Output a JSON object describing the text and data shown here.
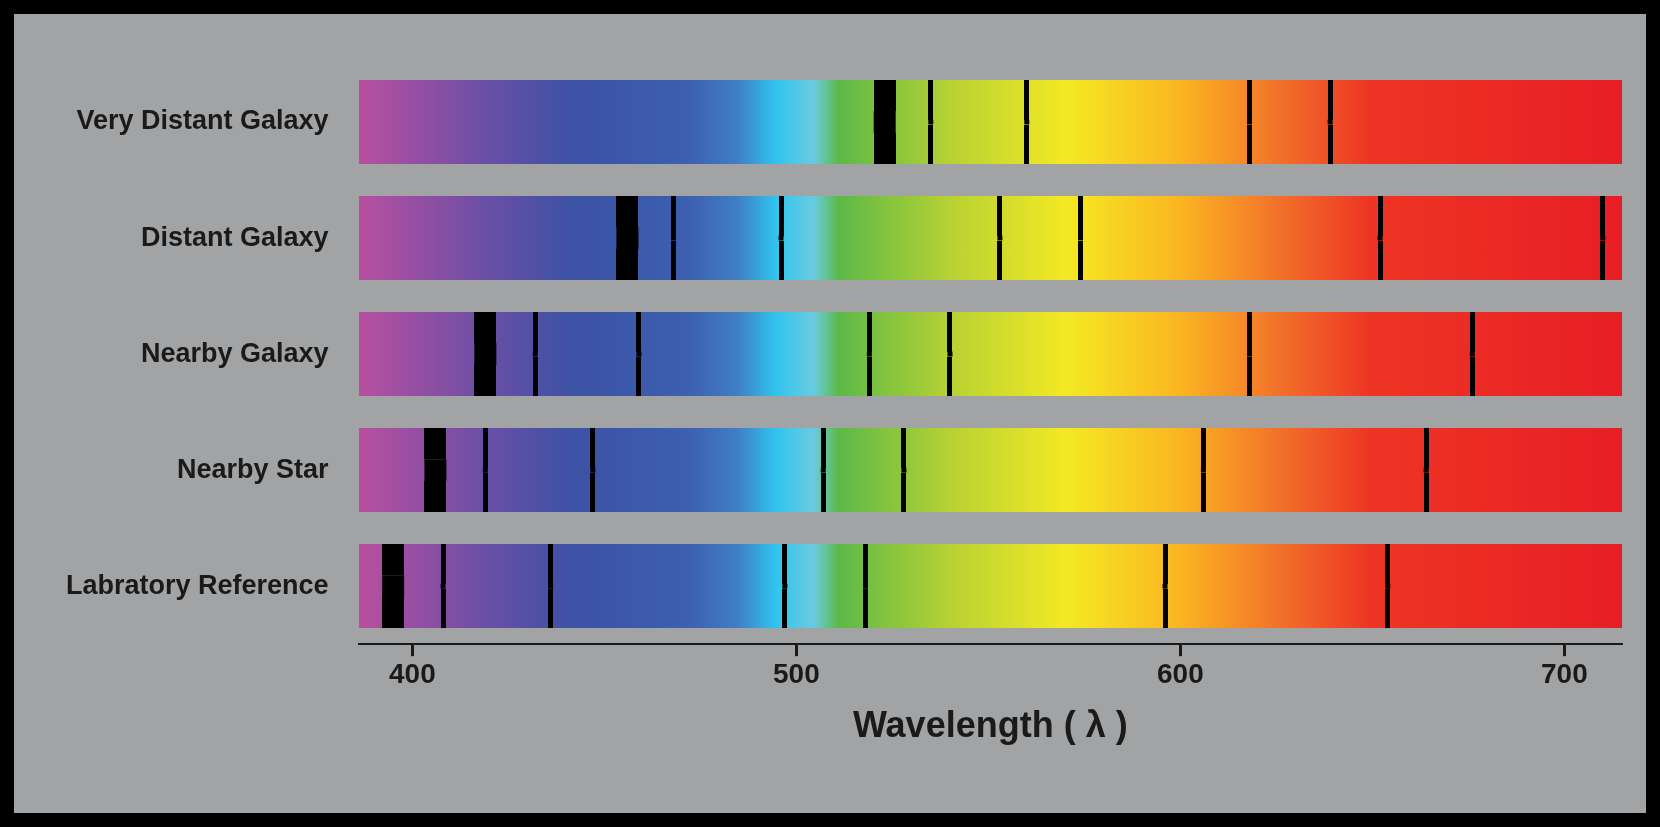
{
  "chart_data": {
    "type": "scatter",
    "orientation": "horizontal",
    "xlabel": "Wavelength ( λ )",
    "categories": [
      "Very Distant Galaxy",
      "Distant Galaxy",
      "Nearby Galaxy",
      "Nearby Star",
      "Labratory Reference"
    ],
    "xlim": [
      386,
      715
    ],
    "xticks": [
      400,
      500,
      600,
      700
    ],
    "series": [
      {
        "color": "#000000",
        "values": [
          523,
          456,
          419,
          406,
          395
        ]
      },
      {
        "color": "#000000",
        "values": [
          535,
          468,
          432,
          419,
          408
        ]
      },
      {
        "color": "#000000",
        "values": [
          560,
          496,
          459,
          447,
          436
        ]
      },
      {
        "color": "#000000",
        "values": [
          618,
          553,
          519,
          507,
          497
        ]
      },
      {
        "color": "#000000",
        "values": [
          639,
          574,
          540,
          528,
          518
        ]
      },
      {
        "color": "#000000",
        "values": [
          null,
          652,
          618,
          606,
          596
        ]
      },
      {
        "color": "#000000",
        "values": [
          null,
          710,
          676,
          664,
          654
        ]
      }
    ]
  }
}
